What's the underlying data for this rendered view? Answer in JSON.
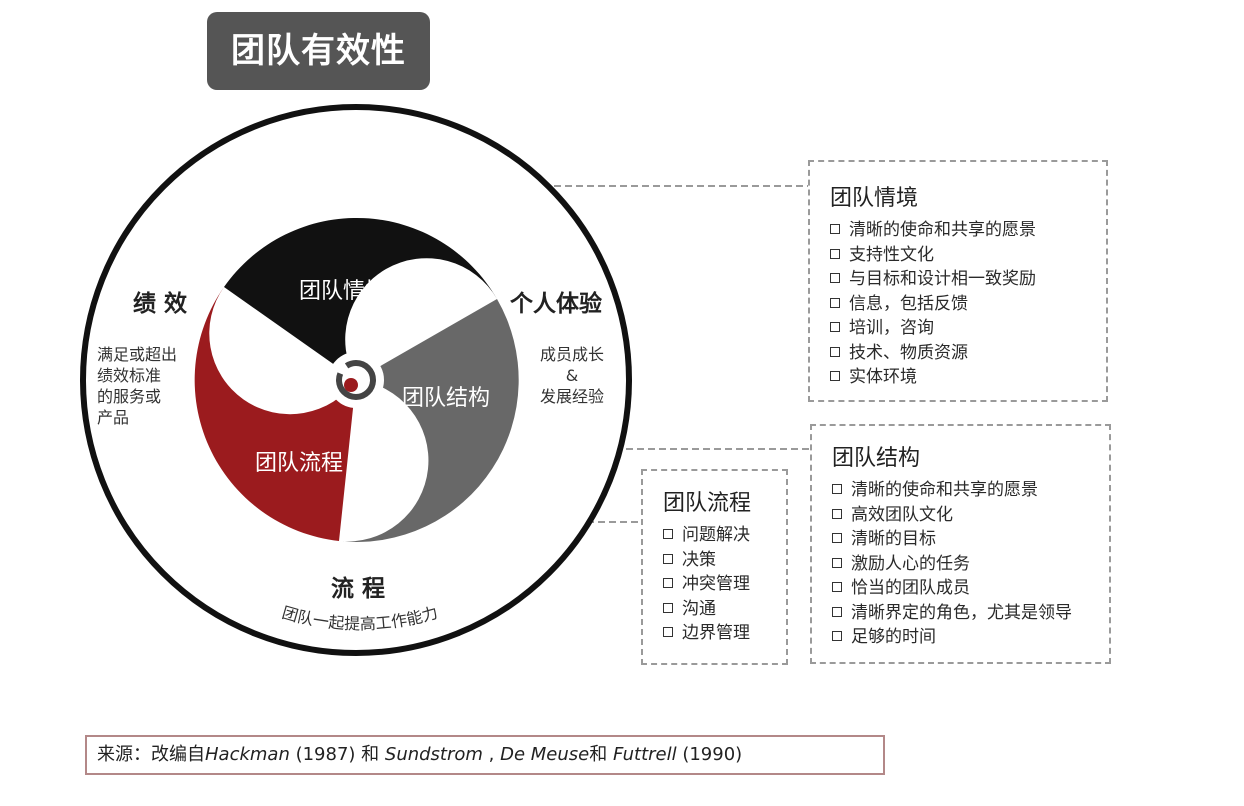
{
  "title": "团队有效性",
  "wheel": {
    "center_segments": {
      "top": "团队情境",
      "right": "团队结构",
      "left": "团队流程"
    },
    "outer_labels": {
      "left": {
        "heading": "绩 效",
        "lines": [
          "满足或超出",
          "绩效标准",
          "的服务或",
          "产品"
        ]
      },
      "right": {
        "heading": "个人体验",
        "lines": [
          "成员成长",
          "&",
          "发展经验"
        ]
      },
      "bottom": {
        "heading": "流 程",
        "arc_text": "团队一起提高工作能力"
      }
    },
    "colors": {
      "context": "#111111",
      "structure": "#686868",
      "process": "#9b1b1e"
    }
  },
  "boxes": {
    "context": {
      "title": "团队情境",
      "items": [
        "清晰的使命和共享的愿景",
        "支持性文化",
        "与目标和设计相一致奖励",
        "信息，包括反馈",
        "培训，咨询",
        "技术、物质资源",
        "实体环境"
      ]
    },
    "structure": {
      "title": "团队结构",
      "items": [
        "清晰的使命和共享的愿景",
        "高效团队文化",
        "清晰的目标",
        "激励人心的任务",
        "恰当的团队成员",
        "清晰界定的角色，尤其是领导",
        "足够的时间"
      ]
    },
    "process": {
      "title": "团队流程",
      "items": [
        "问题解决",
        "决策",
        "冲突管理",
        "沟通",
        "边界管理"
      ]
    }
  },
  "source": {
    "prefix": "来源：改编自",
    "author1": "Hackman",
    "year1": " (1987) 和 ",
    "author2": "Sundstrom",
    "sep": " , ",
    "author3": "De Meuse",
    "and": "和 ",
    "author4": "Futtrell",
    "year2": " (1990)"
  }
}
